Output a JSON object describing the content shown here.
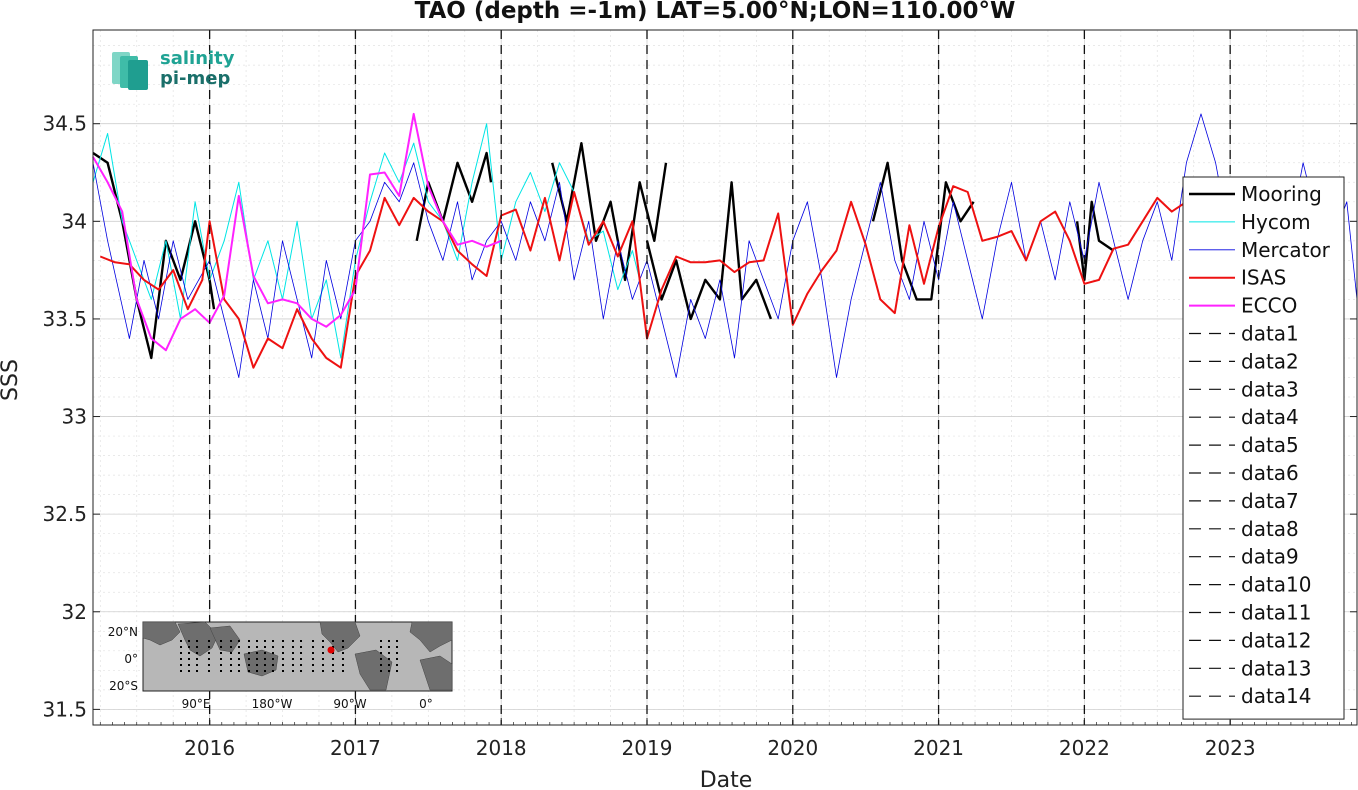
{
  "chart_data": {
    "type": "line",
    "title": "TAO (depth =-1m) LAT=5.00°N;LON=110.00°W",
    "xlabel": "Date",
    "ylabel": "SSS",
    "xlim": [
      2015.2,
      2023.87
    ],
    "ylim": [
      31.42,
      34.98
    ],
    "xticks": [
      2016,
      2017,
      2018,
      2019,
      2020,
      2021,
      2022,
      2023
    ],
    "xtick_labels": [
      "2016",
      "2017",
      "2018",
      "2019",
      "2020",
      "2021",
      "2022",
      "2023"
    ],
    "yticks": [
      31.5,
      32,
      32.5,
      33,
      33.5,
      34,
      34.5
    ],
    "ytick_labels": [
      "31.5",
      "32",
      "32.5",
      "33",
      "33.5",
      "34",
      "34.5"
    ],
    "grid": true,
    "legend_position": "right",
    "vertical_dashed_lines_x": [
      2016,
      2017,
      2018,
      2019,
      2020,
      2021,
      2022,
      2023
    ],
    "series": [
      {
        "name": "Mooring",
        "color": "#000000",
        "width": 2.4,
        "segments": [
          {
            "x": [
              2015.2,
              2015.3,
              2015.4,
              2015.5,
              2015.6,
              2015.7,
              2015.8,
              2015.9,
              2016.0,
              2016.03
            ],
            "y": [
              34.35,
              34.3,
              34.0,
              33.6,
              33.3,
              33.9,
              33.7,
              34.0,
              33.7,
              33.55
            ]
          },
          {
            "x": [
              2017.42,
              2017.5,
              2017.6,
              2017.7,
              2017.8,
              2017.9,
              2017.93
            ],
            "y": [
              33.9,
              34.2,
              34.0,
              34.3,
              34.1,
              34.35,
              34.2
            ]
          },
          {
            "x": [
              2018.35,
              2018.45,
              2018.55,
              2018.65,
              2018.75,
              2018.85,
              2018.95,
              2019.05,
              2019.13
            ],
            "y": [
              34.3,
              34.0,
              34.4,
              33.9,
              34.1,
              33.7,
              34.2,
              33.9,
              34.3
            ]
          },
          {
            "x": [
              2019.0,
              2019.1,
              2019.2,
              2019.3,
              2019.4,
              2019.5,
              2019.58,
              2019.65,
              2019.75,
              2019.85
            ],
            "y": [
              33.9,
              33.6,
              33.8,
              33.5,
              33.7,
              33.6,
              34.2,
              33.6,
              33.7,
              33.5
            ]
          },
          {
            "x": [
              2020.55,
              2020.65,
              2020.75,
              2020.85,
              2020.95,
              2021.05,
              2021.15,
              2021.24
            ],
            "y": [
              34.0,
              34.3,
              33.8,
              33.6,
              33.6,
              34.2,
              34.0,
              34.1
            ]
          },
          {
            "x": [
              2021.95,
              2022.0,
              2022.05,
              2022.1,
              2022.2
            ],
            "y": [
              34.0,
              33.7,
              34.1,
              33.9,
              33.85
            ]
          }
        ]
      },
      {
        "name": "Hycom",
        "color": "#00e5e5",
        "width": 1.0,
        "segments": [
          {
            "x": [
              2015.2,
              2015.3,
              2015.4,
              2015.5,
              2015.6,
              2015.7,
              2015.8,
              2015.9,
              2016.0,
              2016.1,
              2016.2,
              2016.3,
              2016.4,
              2016.5,
              2016.6,
              2016.7,
              2016.8,
              2016.9,
              2017.0,
              2017.1,
              2017.2,
              2017.3,
              2017.4,
              2017.5,
              2017.6,
              2017.7,
              2017.8,
              2017.9,
              2018.0,
              2018.1,
              2018.2,
              2018.3,
              2018.4,
              2018.5,
              2018.6,
              2018.7,
              2018.8,
              2018.9,
              2018.95
            ],
            "y": [
              34.2,
              34.45,
              34.0,
              33.8,
              33.6,
              33.9,
              33.5,
              34.1,
              33.7,
              33.9,
              34.2,
              33.7,
              33.9,
              33.6,
              34.0,
              33.5,
              33.7,
              33.3,
              33.8,
              34.1,
              34.35,
              34.2,
              34.4,
              34.1,
              34.0,
              33.8,
              34.2,
              34.5,
              33.8,
              34.1,
              34.25,
              34.05,
              34.3,
              34.15,
              33.9,
              33.95,
              33.65,
              33.85,
              33.7
            ]
          }
        ]
      },
      {
        "name": "Mercator",
        "color": "#0000e0",
        "width": 0.8,
        "segments": [
          {
            "x": [
              2015.2,
              2015.3,
              2015.45,
              2015.55,
              2015.65,
              2015.75,
              2015.85,
              2016.0,
              2016.1,
              2016.2,
              2016.3,
              2016.4,
              2016.5,
              2016.6,
              2016.7,
              2016.8,
              2016.9,
              2017.0,
              2017.1,
              2017.2,
              2017.3,
              2017.4,
              2017.5,
              2017.6,
              2017.7,
              2017.8,
              2017.9,
              2018.0,
              2018.1,
              2018.2,
              2018.3,
              2018.4,
              2018.5,
              2018.6,
              2018.7,
              2018.8,
              2018.9,
              2019.0,
              2019.1,
              2019.2,
              2019.3,
              2019.4,
              2019.5,
              2019.6,
              2019.7,
              2019.8,
              2019.9,
              2020.0,
              2020.1,
              2020.2,
              2020.3,
              2020.4,
              2020.5,
              2020.6,
              2020.7,
              2020.8,
              2020.9,
              2021.0,
              2021.1,
              2021.2,
              2021.3,
              2021.4,
              2021.5,
              2021.6,
              2021.7,
              2021.8,
              2021.9,
              2022.0,
              2022.1,
              2022.2,
              2022.3,
              2022.4,
              2022.5,
              2022.6,
              2022.7,
              2022.8,
              2022.9,
              2023.0,
              2023.1,
              2023.2,
              2023.3,
              2023.4,
              2023.5,
              2023.6,
              2023.7,
              2023.8,
              2023.87
            ],
            "y": [
              34.3,
              33.9,
              33.4,
              33.8,
              33.5,
              33.9,
              33.6,
              33.8,
              33.5,
              33.2,
              33.7,
              33.4,
              33.9,
              33.6,
              33.3,
              33.8,
              33.5,
              33.9,
              34.0,
              34.2,
              34.1,
              34.3,
              34.0,
              33.8,
              34.1,
              33.7,
              33.9,
              34.0,
              33.8,
              34.1,
              33.9,
              34.2,
              33.7,
              34.0,
              33.5,
              33.9,
              33.6,
              33.8,
              33.5,
              33.2,
              33.6,
              33.4,
              33.7,
              33.3,
              33.9,
              33.7,
              33.5,
              33.9,
              34.1,
              33.7,
              33.2,
              33.6,
              33.9,
              34.2,
              33.8,
              33.6,
              34.0,
              33.7,
              34.1,
              33.8,
              33.5,
              33.9,
              34.2,
              33.8,
              34.0,
              33.7,
              34.1,
              33.8,
              34.2,
              33.9,
              33.6,
              33.9,
              34.1,
              33.8,
              34.3,
              34.55,
              34.3,
              33.9,
              34.1,
              33.8,
              34.2,
              33.9,
              34.3,
              34.0,
              33.9,
              34.1,
              33.6
            ]
          }
        ]
      },
      {
        "name": "ISAS",
        "color": "#ee1111",
        "width": 2.0,
        "segments": [
          {
            "x": [
              2015.25,
              2015.35,
              2015.45,
              2015.55,
              2015.65,
              2015.75,
              2015.85,
              2015.95,
              2016.0,
              2016.1,
              2016.2,
              2016.3,
              2016.4,
              2016.5,
              2016.6,
              2016.7,
              2016.8,
              2016.9,
              2017.0,
              2017.1,
              2017.2,
              2017.3,
              2017.4,
              2017.5,
              2017.6,
              2017.7,
              2017.8,
              2017.9,
              2018.0,
              2018.1,
              2018.2,
              2018.3,
              2018.4,
              2018.5,
              2018.6,
              2018.7,
              2018.8,
              2018.9,
              2019.0,
              2019.1,
              2019.2,
              2019.3,
              2019.4,
              2019.5,
              2019.6,
              2019.7,
              2019.8,
              2019.9,
              2020.0,
              2020.1,
              2020.2,
              2020.3,
              2020.4,
              2020.5,
              2020.6,
              2020.7,
              2020.8,
              2020.9,
              2021.0,
              2021.1,
              2021.2,
              2021.3,
              2021.4,
              2021.5,
              2021.6,
              2021.7,
              2021.8,
              2021.9,
              2022.0,
              2022.1,
              2022.2,
              2022.3,
              2022.4,
              2022.5,
              2022.6,
              2022.7,
              2022.8,
              2022.9
            ],
            "y": [
              33.82,
              33.79,
              33.78,
              33.7,
              33.65,
              33.75,
              33.55,
              33.7,
              34.0,
              33.6,
              33.5,
              33.25,
              33.4,
              33.35,
              33.55,
              33.4,
              33.3,
              33.25,
              33.72,
              33.85,
              34.12,
              33.98,
              34.12,
              34.05,
              34.0,
              33.85,
              33.78,
              33.72,
              34.03,
              34.06,
              33.85,
              34.12,
              33.8,
              34.15,
              33.88,
              34.0,
              33.82,
              34.0,
              33.4,
              33.65,
              33.82,
              33.79,
              33.79,
              33.8,
              33.74,
              33.79,
              33.8,
              34.04,
              33.47,
              33.63,
              33.75,
              33.85,
              34.1,
              33.88,
              33.6,
              33.53,
              33.98,
              33.68,
              33.97,
              34.18,
              34.15,
              33.9,
              33.92,
              33.95,
              33.8,
              34.0,
              34.05,
              33.9,
              33.68,
              33.7,
              33.86,
              33.88,
              34.0,
              34.12,
              34.05,
              34.1,
              33.95,
              34.0
            ]
          }
        ]
      },
      {
        "name": "ECCO",
        "color": "#ff22ff",
        "width": 2.0,
        "segments": [
          {
            "x": [
              2015.2,
              2015.3,
              2015.4,
              2015.5,
              2015.6,
              2015.7,
              2015.8,
              2015.9,
              2016.0,
              2016.1,
              2016.2,
              2016.3,
              2016.4,
              2016.5,
              2016.6,
              2016.7,
              2016.8,
              2016.9,
              2017.0,
              2017.1,
              2017.2,
              2017.3,
              2017.4,
              2017.5,
              2017.6,
              2017.7,
              2017.8,
              2017.9,
              2018.0
            ],
            "y": [
              34.33,
              34.2,
              34.05,
              33.6,
              33.4,
              33.34,
              33.5,
              33.55,
              33.48,
              33.62,
              34.13,
              33.72,
              33.58,
              33.6,
              33.58,
              33.5,
              33.46,
              33.52,
              33.65,
              34.24,
              34.25,
              34.13,
              34.55,
              34.18,
              34.0,
              33.88,
              33.9,
              33.87,
              33.9
            ]
          }
        ]
      }
    ],
    "legend": [
      "Mooring",
      "Hycom",
      "Mercator",
      "ISAS",
      "ECCO",
      "data1",
      "data2",
      "data3",
      "data4",
      "data5",
      "data6",
      "data7",
      "data8",
      "data9",
      "data10",
      "data11",
      "data12",
      "data13",
      "data14"
    ],
    "logo": {
      "line1": "salinity",
      "line2": "pi-mep"
    },
    "inset_map": {
      "ylabels": [
        "20°N",
        "0°",
        "20°S"
      ],
      "xlabels": [
        "90°E",
        "180°W",
        "90°W",
        "0°"
      ]
    }
  }
}
